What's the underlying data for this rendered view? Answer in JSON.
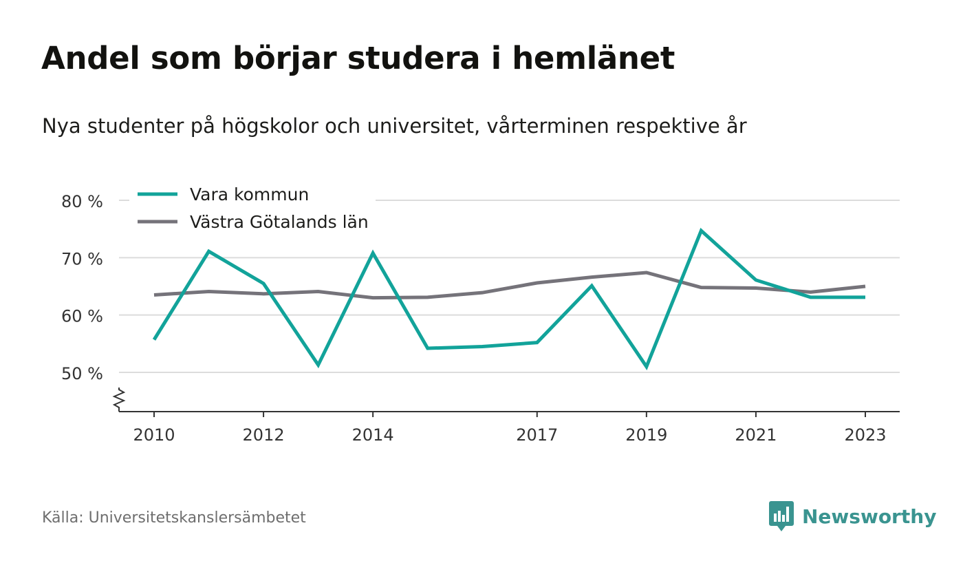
{
  "header": {
    "title": "Andel som börjar studera i hemlänet",
    "subtitle": "Nya studenter på högskolor och universitet, vårterminen respektive år"
  },
  "footer": {
    "source": "Källa: Universitetskanslersämbetet",
    "brand": "Newsworthy",
    "brand_color": "#3a9490"
  },
  "chart_data": {
    "type": "line",
    "title": "Andel som börjar studera i hemlänet",
    "subtitle": "Nya studenter på högskolor och universitet, vårterminen respektive år",
    "x": [
      2010,
      2011,
      2012,
      2013,
      2014,
      2015,
      2016,
      2017,
      2018,
      2019,
      2020,
      2021,
      2022,
      2023
    ],
    "x_tick_labels": [
      "2010",
      "2012",
      "2014",
      "2017",
      "2019",
      "2021",
      "2023"
    ],
    "y_tick_labels": [
      "50 %",
      "60 %",
      "70 %",
      "80 %"
    ],
    "y_ticks": [
      50,
      60,
      70,
      80
    ],
    "ylim": [
      43,
      80
    ],
    "axis_break": true,
    "grid": true,
    "legend_position": "top-left",
    "series": [
      {
        "name": "Vara kommun",
        "color": "#12a39a",
        "values": [
          55.7,
          71.1,
          65.5,
          51.3,
          70.8,
          54.2,
          54.5,
          55.2,
          65.1,
          51.0,
          74.7,
          66.1,
          63.1,
          63.1
        ]
      },
      {
        "name": "Västra Götalands län",
        "color": "#75737a",
        "values": [
          63.5,
          64.1,
          63.7,
          64.1,
          63.0,
          63.1,
          63.9,
          65.6,
          66.6,
          67.4,
          64.8,
          64.7,
          64.0,
          65.0
        ]
      }
    ]
  }
}
